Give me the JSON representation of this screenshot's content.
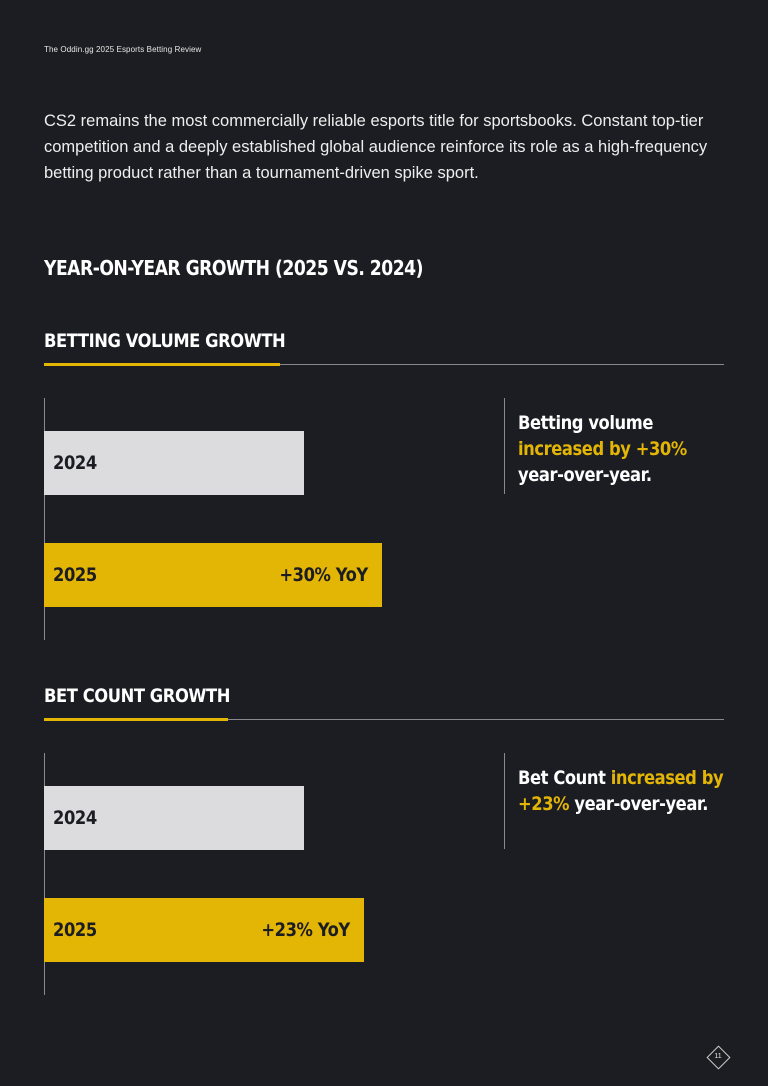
{
  "header": {
    "title": "The Oddin.gg 2025 Esports Betting Review"
  },
  "intro": "CS2 remains the most commercially reliable esports title for sportsbooks. Constant top-tier competition and a deeply established global audience reinforce its role as a high-frequency betting product rather than a tournament-driven spike sport.",
  "section_title": "YEAR-ON-YEAR GROWTH (2025 VS. 2024)",
  "colors": {
    "background": "#1c1d22",
    "accent": "#e3b505",
    "bar_2024": "#dcdcdf",
    "divider": "#8a8a8e"
  },
  "chart_data": [
    {
      "type": "bar",
      "title": "BETTING VOLUME GROWTH",
      "categories": [
        "2024",
        "2025"
      ],
      "values": [
        100,
        130
      ],
      "data_labels": [
        "",
        "+30% YoY"
      ],
      "callout": {
        "pre": "Betting volume ",
        "highlight": "increased by +30%",
        "post": " year-over-year."
      }
    },
    {
      "type": "bar",
      "title": "BET COUNT GROWTH",
      "categories": [
        "2024",
        "2025"
      ],
      "values": [
        100,
        123
      ],
      "data_labels": [
        "",
        "+23% YoY"
      ],
      "callout": {
        "pre": "Bet Count ",
        "highlight": "increased by +23%",
        "post": " year-over-year."
      }
    }
  ],
  "page_number": "11",
  "icons": {
    "page_marker": "diamond-icon"
  }
}
